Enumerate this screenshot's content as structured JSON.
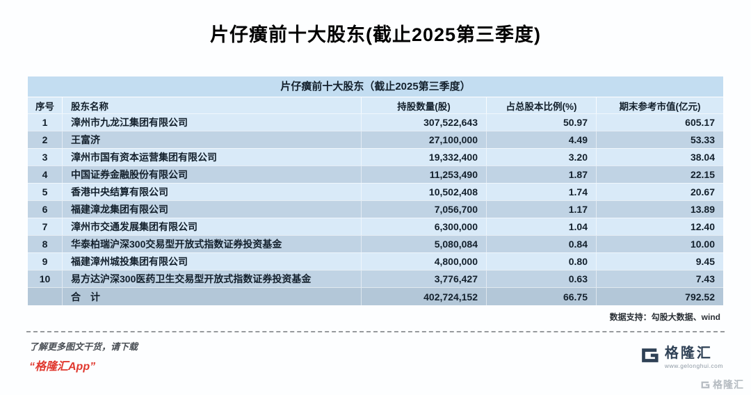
{
  "page": {
    "title": "片仔癀前十大股东(截止2025第三季度)",
    "data_support": "数据支持：勾股大数据、wind",
    "footer_promo_line1": "了解更多图文干货，请下载",
    "footer_promo_line2": "“格隆汇App”",
    "logo_text": "格隆汇",
    "logo_url": "www.gelonghui.com",
    "watermark_text": "格隆汇"
  },
  "chart_data": {
    "type": "table",
    "title": "片仔癀前十大股东（截止2025第三季度）",
    "columns": [
      "序号",
      "股东名称",
      "持股数量(股)",
      "占总股本比例(%)",
      "期末参考市值(亿元)"
    ],
    "rows": [
      [
        "1",
        "漳州市九龙江集团有限公司",
        "307,522,643",
        "50.97",
        "605.17"
      ],
      [
        "2",
        "王富济",
        "27,100,000",
        "4.49",
        "53.33"
      ],
      [
        "3",
        "漳州市国有资本运营集团有限公司",
        "19,332,400",
        "3.20",
        "38.04"
      ],
      [
        "4",
        "中国证券金融股份有限公司",
        "11,253,490",
        "1.87",
        "22.15"
      ],
      [
        "5",
        "香港中央结算有限公司",
        "10,502,408",
        "1.74",
        "20.67"
      ],
      [
        "6",
        "福建漳龙集团有限公司",
        "7,056,700",
        "1.17",
        "13.89"
      ],
      [
        "7",
        "漳州市交通发展集团有限公司",
        "6,300,000",
        "1.04",
        "12.40"
      ],
      [
        "8",
        "华泰柏瑞沪深300交易型开放式指数证券投资基金",
        "5,080,084",
        "0.84",
        "10.00"
      ],
      [
        "9",
        "福建漳州城投集团有限公司",
        "4,800,000",
        "0.80",
        "9.45"
      ],
      [
        "10",
        "易方达沪深300医药卫生交易型开放式指数证券投资基金",
        "3,776,427",
        "0.63",
        "7.43"
      ]
    ],
    "total_row": [
      "",
      "合　计",
      "402,724,152",
      "66.75",
      "792.52"
    ]
  },
  "colors": {
    "accent_red": "#e0382e",
    "table_title_bg": "#c3ddf1",
    "header_bg": "#d8eaf8",
    "row_odd_bg": "#d9eaf8",
    "row_even_bg": "#c0d3e4",
    "total_bg": "#b3c7d8",
    "text_dark": "#13202c",
    "logo_navy": "#2f4156"
  }
}
